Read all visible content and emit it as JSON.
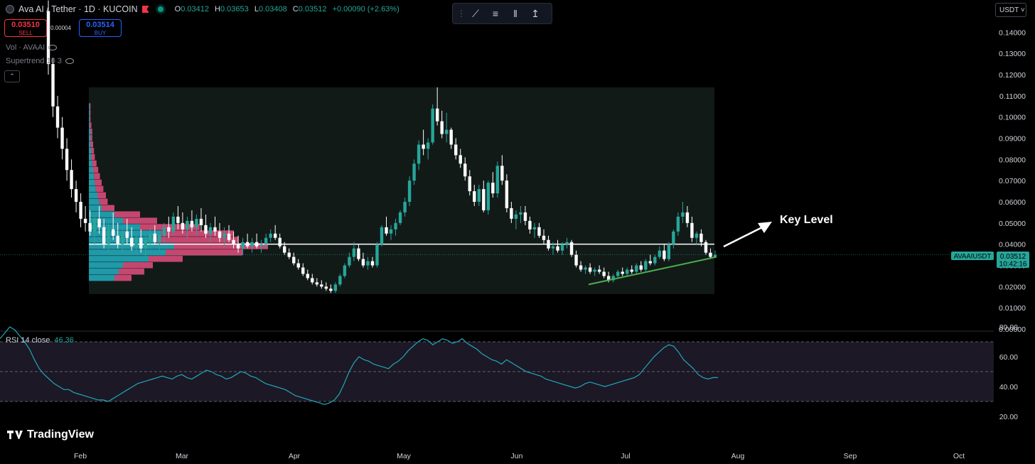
{
  "header": {
    "title": "Ava AI / Tether · 1D · KUCOIN",
    "ohlc": [
      {
        "k": "O",
        "v": "0.03412"
      },
      {
        "k": "H",
        "v": "0.03653"
      },
      {
        "k": "L",
        "v": "0.03408"
      },
      {
        "k": "C",
        "v": "0.03512"
      },
      {
        "k": "",
        "v": "+0.00090 (+2.63%)"
      }
    ]
  },
  "trade": {
    "sell_price": "0.03510",
    "sell_label": "SELL",
    "buy_price": "0.03514",
    "buy_label": "BUY",
    "spread": "0.00004"
  },
  "indicators": [
    "Vol · AVAAI",
    "Supertrend 10 3"
  ],
  "toolbar_icons": [
    "drag-handle-icon",
    "trend-line-icon",
    "horizontal-lines-icon",
    "fib-retracement-icon",
    "long-position-icon"
  ],
  "currency": "USDT",
  "price_axis": [
    "0.14000",
    "0.13000",
    "0.12000",
    "0.11000",
    "0.10000",
    "0.09000",
    "0.08000",
    "0.07000",
    "0.06000",
    "0.05000",
    "0.04000",
    "0.03000",
    "0.02000",
    "0.01000",
    "0.00000"
  ],
  "current": {
    "symbol": "AVAAIUSDT",
    "price": "0.03512",
    "countdown": "10:42:16"
  },
  "annotation": "Key Level",
  "key_level": 0.04,
  "rsi": {
    "label": "RSI 14 close",
    "value": "46.36",
    "axis": [
      "80.00",
      "60.00",
      "40.00",
      "20.00"
    ],
    "upper": 70,
    "middle": 50,
    "lower": 30
  },
  "time_axis": [
    "Feb",
    "Mar",
    "Apr",
    "May",
    "Jun",
    "Jul",
    "Aug",
    "Sep",
    "Oct"
  ],
  "watermark": "TradingView",
  "colors": {
    "up": "#26a69a",
    "down": "#ffffff",
    "bull_vol": "#22a7b8",
    "bear_vol": "#d94d7a",
    "trendline": "#4caf50",
    "rsi": "#22a7b8",
    "background": "#000000"
  },
  "chart_data": {
    "type": "candlestick",
    "y_range": [
      0.0,
      0.14
    ],
    "candles": [
      [
        0.15,
        0.16,
        0.12,
        0.125
      ],
      [
        0.125,
        0.128,
        0.1,
        0.105
      ],
      [
        0.105,
        0.11,
        0.09,
        0.095
      ],
      [
        0.095,
        0.1,
        0.08,
        0.085
      ],
      [
        0.085,
        0.09,
        0.07,
        0.075
      ],
      [
        0.075,
        0.08,
        0.062,
        0.066
      ],
      [
        0.066,
        0.07,
        0.055,
        0.06
      ],
      [
        0.06,
        0.064,
        0.048,
        0.052
      ],
      [
        0.052,
        0.058,
        0.046,
        0.05
      ],
      [
        0.05,
        0.056,
        0.044,
        0.046
      ],
      [
        0.046,
        0.054,
        0.04,
        0.052
      ],
      [
        0.052,
        0.058,
        0.045,
        0.048
      ],
      [
        0.048,
        0.052,
        0.038,
        0.04
      ],
      [
        0.04,
        0.05,
        0.036,
        0.047
      ],
      [
        0.047,
        0.055,
        0.042,
        0.044
      ],
      [
        0.044,
        0.05,
        0.038,
        0.04
      ],
      [
        0.04,
        0.048,
        0.036,
        0.046
      ],
      [
        0.046,
        0.052,
        0.04,
        0.043
      ],
      [
        0.043,
        0.048,
        0.037,
        0.039
      ],
      [
        0.039,
        0.045,
        0.035,
        0.043
      ],
      [
        0.043,
        0.047,
        0.036,
        0.038
      ],
      [
        0.038,
        0.044,
        0.034,
        0.042
      ],
      [
        0.042,
        0.048,
        0.038,
        0.045
      ],
      [
        0.045,
        0.049,
        0.04,
        0.041
      ],
      [
        0.041,
        0.046,
        0.037,
        0.044
      ],
      [
        0.044,
        0.05,
        0.041,
        0.048
      ],
      [
        0.048,
        0.053,
        0.043,
        0.046
      ],
      [
        0.046,
        0.055,
        0.044,
        0.053
      ],
      [
        0.053,
        0.058,
        0.047,
        0.05
      ],
      [
        0.05,
        0.055,
        0.045,
        0.047
      ],
      [
        0.047,
        0.053,
        0.043,
        0.051
      ],
      [
        0.051,
        0.056,
        0.046,
        0.048
      ],
      [
        0.048,
        0.054,
        0.044,
        0.052
      ],
      [
        0.052,
        0.057,
        0.046,
        0.049
      ],
      [
        0.049,
        0.054,
        0.043,
        0.045
      ],
      [
        0.045,
        0.05,
        0.041,
        0.048
      ],
      [
        0.048,
        0.053,
        0.044,
        0.046
      ],
      [
        0.046,
        0.05,
        0.041,
        0.043
      ],
      [
        0.043,
        0.048,
        0.039,
        0.045
      ],
      [
        0.045,
        0.049,
        0.041,
        0.042
      ],
      [
        0.042,
        0.046,
        0.038,
        0.04
      ],
      [
        0.04,
        0.044,
        0.036,
        0.038
      ],
      [
        0.038,
        0.043,
        0.035,
        0.041
      ],
      [
        0.041,
        0.045,
        0.038,
        0.039
      ],
      [
        0.039,
        0.043,
        0.036,
        0.041
      ],
      [
        0.041,
        0.045,
        0.038,
        0.039
      ],
      [
        0.039,
        0.042,
        0.036,
        0.04
      ],
      [
        0.04,
        0.045,
        0.038,
        0.043
      ],
      [
        0.043,
        0.047,
        0.041,
        0.045
      ],
      [
        0.045,
        0.049,
        0.042,
        0.043
      ],
      [
        0.043,
        0.045,
        0.038,
        0.039
      ],
      [
        0.039,
        0.041,
        0.035,
        0.036
      ],
      [
        0.036,
        0.038,
        0.033,
        0.034
      ],
      [
        0.034,
        0.036,
        0.03,
        0.031
      ],
      [
        0.031,
        0.033,
        0.028,
        0.029
      ],
      [
        0.029,
        0.031,
        0.025,
        0.026
      ],
      [
        0.026,
        0.028,
        0.023,
        0.024
      ],
      [
        0.024,
        0.026,
        0.021,
        0.022
      ],
      [
        0.022,
        0.024,
        0.02,
        0.021
      ],
      [
        0.021,
        0.023,
        0.019,
        0.02
      ],
      [
        0.02,
        0.022,
        0.018,
        0.019
      ],
      [
        0.019,
        0.021,
        0.017,
        0.018
      ],
      [
        0.018,
        0.022,
        0.017,
        0.021
      ],
      [
        0.021,
        0.026,
        0.02,
        0.025
      ],
      [
        0.025,
        0.031,
        0.024,
        0.03
      ],
      [
        0.03,
        0.036,
        0.029,
        0.034
      ],
      [
        0.034,
        0.041,
        0.032,
        0.038
      ],
      [
        0.038,
        0.04,
        0.032,
        0.033
      ],
      [
        0.033,
        0.036,
        0.029,
        0.03
      ],
      [
        0.03,
        0.034,
        0.028,
        0.032
      ],
      [
        0.032,
        0.034,
        0.029,
        0.03
      ],
      [
        0.03,
        0.041,
        0.029,
        0.04
      ],
      [
        0.04,
        0.049,
        0.039,
        0.048
      ],
      [
        0.048,
        0.053,
        0.044,
        0.045
      ],
      [
        0.045,
        0.049,
        0.042,
        0.047
      ],
      [
        0.047,
        0.052,
        0.044,
        0.05
      ],
      [
        0.05,
        0.056,
        0.049,
        0.055
      ],
      [
        0.055,
        0.062,
        0.053,
        0.06
      ],
      [
        0.06,
        0.072,
        0.058,
        0.07
      ],
      [
        0.07,
        0.08,
        0.068,
        0.078
      ],
      [
        0.078,
        0.089,
        0.075,
        0.087
      ],
      [
        0.087,
        0.094,
        0.082,
        0.085
      ],
      [
        0.085,
        0.09,
        0.08,
        0.088
      ],
      [
        0.088,
        0.106,
        0.087,
        0.104
      ],
      [
        0.104,
        0.114,
        0.096,
        0.098
      ],
      [
        0.098,
        0.103,
        0.09,
        0.092
      ],
      [
        0.092,
        0.102,
        0.088,
        0.094
      ],
      [
        0.094,
        0.095,
        0.085,
        0.087
      ],
      [
        0.087,
        0.09,
        0.08,
        0.082
      ],
      [
        0.082,
        0.085,
        0.076,
        0.078
      ],
      [
        0.078,
        0.081,
        0.07,
        0.072
      ],
      [
        0.072,
        0.075,
        0.063,
        0.065
      ],
      [
        0.065,
        0.068,
        0.058,
        0.06
      ],
      [
        0.06,
        0.068,
        0.058,
        0.066
      ],
      [
        0.066,
        0.07,
        0.055,
        0.056
      ],
      [
        0.056,
        0.07,
        0.054,
        0.069
      ],
      [
        0.069,
        0.074,
        0.062,
        0.064
      ],
      [
        0.064,
        0.079,
        0.062,
        0.077
      ],
      [
        0.077,
        0.082,
        0.068,
        0.07
      ],
      [
        0.07,
        0.073,
        0.055,
        0.057
      ],
      [
        0.057,
        0.06,
        0.05,
        0.052
      ],
      [
        0.052,
        0.056,
        0.047,
        0.054
      ],
      [
        0.054,
        0.058,
        0.05,
        0.055
      ],
      [
        0.055,
        0.058,
        0.049,
        0.051
      ],
      [
        0.051,
        0.053,
        0.045,
        0.047
      ],
      [
        0.047,
        0.05,
        0.043,
        0.048
      ],
      [
        0.048,
        0.05,
        0.043,
        0.044
      ],
      [
        0.044,
        0.047,
        0.04,
        0.042
      ],
      [
        0.042,
        0.044,
        0.037,
        0.038
      ],
      [
        0.038,
        0.041,
        0.035,
        0.039
      ],
      [
        0.039,
        0.042,
        0.036,
        0.037
      ],
      [
        0.037,
        0.041,
        0.035,
        0.04
      ],
      [
        0.04,
        0.043,
        0.038,
        0.041
      ],
      [
        0.041,
        0.042,
        0.034,
        0.035
      ],
      [
        0.035,
        0.037,
        0.029,
        0.03
      ],
      [
        0.03,
        0.032,
        0.027,
        0.028
      ],
      [
        0.028,
        0.03,
        0.026,
        0.029
      ],
      [
        0.029,
        0.031,
        0.026,
        0.027
      ],
      [
        0.027,
        0.029,
        0.025,
        0.028
      ],
      [
        0.028,
        0.03,
        0.026,
        0.027
      ],
      [
        0.027,
        0.029,
        0.024,
        0.025
      ],
      [
        0.025,
        0.027,
        0.022,
        0.023
      ],
      [
        0.023,
        0.026,
        0.022,
        0.025
      ],
      [
        0.025,
        0.028,
        0.024,
        0.027
      ],
      [
        0.027,
        0.029,
        0.025,
        0.026
      ],
      [
        0.026,
        0.029,
        0.025,
        0.028
      ],
      [
        0.028,
        0.03,
        0.026,
        0.027
      ],
      [
        0.027,
        0.031,
        0.026,
        0.03
      ],
      [
        0.03,
        0.032,
        0.027,
        0.028
      ],
      [
        0.028,
        0.033,
        0.027,
        0.032
      ],
      [
        0.032,
        0.035,
        0.03,
        0.031
      ],
      [
        0.031,
        0.035,
        0.03,
        0.034
      ],
      [
        0.034,
        0.039,
        0.033,
        0.037
      ],
      [
        0.037,
        0.04,
        0.032,
        0.033
      ],
      [
        0.033,
        0.041,
        0.032,
        0.04
      ],
      [
        0.04,
        0.047,
        0.038,
        0.046
      ],
      [
        0.046,
        0.055,
        0.044,
        0.053
      ],
      [
        0.053,
        0.06,
        0.05,
        0.055
      ],
      [
        0.055,
        0.058,
        0.048,
        0.05
      ],
      [
        0.05,
        0.053,
        0.041,
        0.043
      ],
      [
        0.043,
        0.046,
        0.04,
        0.045
      ],
      [
        0.045,
        0.047,
        0.039,
        0.041
      ],
      [
        0.041,
        0.042,
        0.035,
        0.036
      ],
      [
        0.036,
        0.038,
        0.033,
        0.034
      ],
      [
        0.034,
        0.037,
        0.034,
        0.035
      ]
    ],
    "volume_profile": [
      {
        "price": 0.024,
        "bull": 0.3,
        "bear": 0.2
      },
      {
        "price": 0.027,
        "bull": 0.35,
        "bear": 0.3
      },
      {
        "price": 0.03,
        "bull": 0.4,
        "bear": 0.35
      },
      {
        "price": 0.033,
        "bull": 0.7,
        "bear": 0.4
      },
      {
        "price": 0.036,
        "bull": 0.9,
        "bear": 0.9
      },
      {
        "price": 0.039,
        "bull": 1.0,
        "bear": 1.1
      },
      {
        "price": 0.042,
        "bull": 0.8,
        "bear": 0.95
      },
      {
        "price": 0.045,
        "bull": 0.85,
        "bear": 0.85
      },
      {
        "price": 0.048,
        "bull": 0.6,
        "bear": 0.7
      },
      {
        "price": 0.051,
        "bull": 0.4,
        "bear": 0.4
      },
      {
        "price": 0.054,
        "bull": 0.3,
        "bear": 0.3
      },
      {
        "price": 0.057,
        "bull": 0.15,
        "bear": 0.15
      },
      {
        "price": 0.06,
        "bull": 0.12,
        "bear": 0.1
      },
      {
        "price": 0.063,
        "bull": 0.1,
        "bear": 0.1
      },
      {
        "price": 0.066,
        "bull": 0.08,
        "bear": 0.09
      },
      {
        "price": 0.069,
        "bull": 0.07,
        "bear": 0.08
      },
      {
        "price": 0.072,
        "bull": 0.06,
        "bear": 0.07
      },
      {
        "price": 0.075,
        "bull": 0.05,
        "bear": 0.06
      },
      {
        "price": 0.078,
        "bull": 0.04,
        "bear": 0.05
      },
      {
        "price": 0.081,
        "bull": 0.03,
        "bear": 0.04
      },
      {
        "price": 0.084,
        "bull": 0.03,
        "bear": 0.03
      },
      {
        "price": 0.087,
        "bull": 0.02,
        "bear": 0.03
      },
      {
        "price": 0.09,
        "bull": 0.02,
        "bear": 0.02
      },
      {
        "price": 0.093,
        "bull": 0.02,
        "bear": 0.02
      },
      {
        "price": 0.096,
        "bull": 0.01,
        "bear": 0.02
      },
      {
        "price": 0.099,
        "bull": 0.01,
        "bear": 0.01
      },
      {
        "price": 0.102,
        "bull": 0.01,
        "bear": 0.01
      },
      {
        "price": 0.105,
        "bull": 0.01,
        "bear": 0.01
      }
    ],
    "trendline": [
      [
        0.021,
        0.034
      ]
    ],
    "rsi_series": [
      72,
      76,
      80,
      78,
      74,
      70,
      65,
      58,
      52,
      48,
      45,
      42,
      40,
      38,
      38,
      36,
      35,
      34,
      33,
      32,
      31,
      31,
      30,
      32,
      34,
      36,
      38,
      40,
      42,
      43,
      44,
      45,
      46,
      47,
      46,
      45,
      47,
      48,
      46,
      45,
      47,
      49,
      51,
      50,
      48,
      47,
      45,
      46,
      48,
      50,
      49,
      47,
      46,
      44,
      42,
      41,
      40,
      39,
      38,
      36,
      34,
      33,
      32,
      31,
      30,
      29,
      28,
      29,
      31,
      35,
      42,
      50,
      56,
      60,
      58,
      57,
      55,
      54,
      53,
      52,
      55,
      57,
      60,
      64,
      67,
      70,
      72,
      71,
      68,
      70,
      72,
      71,
      69,
      70,
      72,
      69,
      67,
      65,
      62,
      60,
      58,
      57,
      55,
      58,
      56,
      54,
      52,
      50,
      49,
      48,
      47,
      45,
      44,
      43,
      42,
      41,
      40,
      39,
      40,
      42,
      43,
      42,
      41,
      40,
      41,
      42,
      43,
      44,
      45,
      46,
      48,
      52,
      56,
      60,
      63,
      66,
      68,
      67,
      63,
      58,
      55,
      52,
      48,
      46,
      45,
      46,
      46
    ]
  }
}
